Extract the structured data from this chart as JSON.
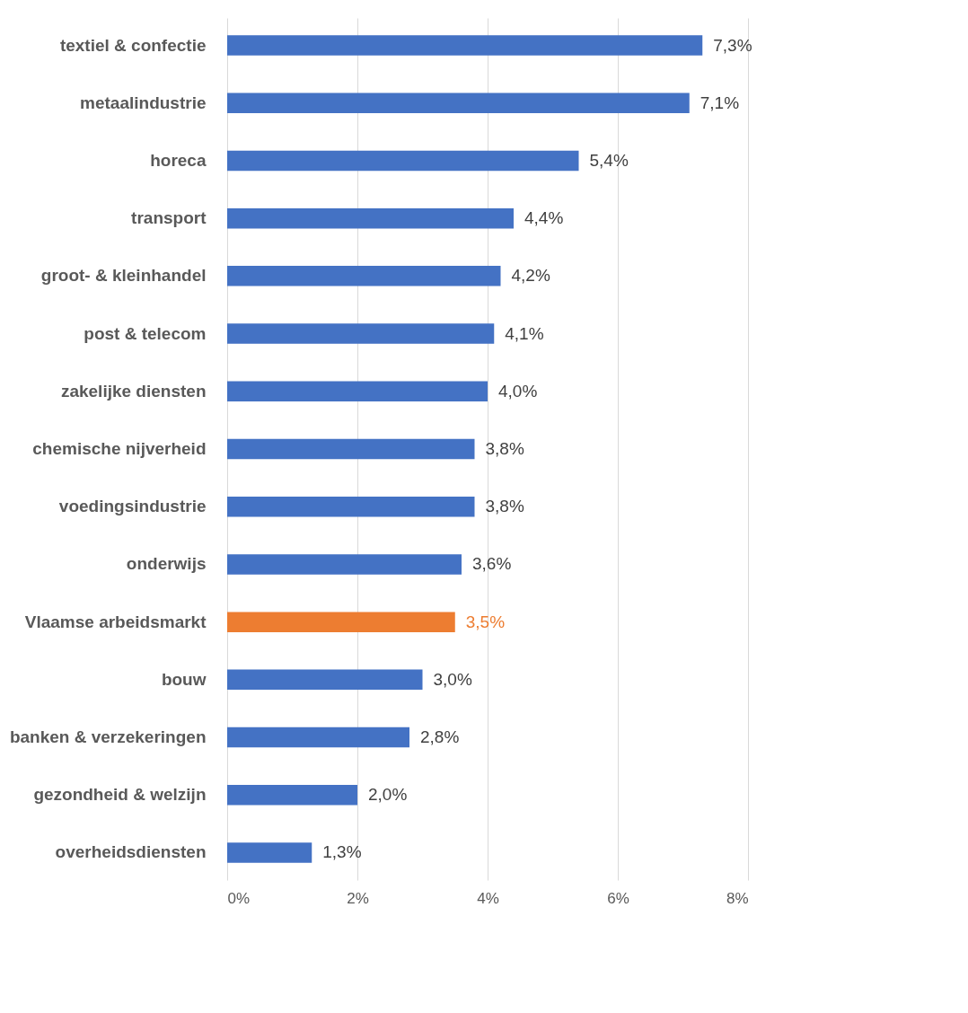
{
  "chart_data": {
    "type": "bar",
    "orientation": "horizontal",
    "categories": [
      "textiel & confectie",
      "metaalindustrie",
      "horeca ",
      "transport",
      "groot- & kleinhandel",
      "post & telecom",
      "zakelijke diensten",
      "chemische nijverheid",
      "voedingsindustrie",
      "onderwijs",
      "Vlaamse arbeidsmarkt",
      "bouw",
      "banken & verzekeringen",
      "gezondheid & welzijn",
      "overheidsdiensten"
    ],
    "values": [
      7.3,
      7.1,
      5.4,
      4.4,
      4.2,
      4.1,
      4.0,
      3.8,
      3.8,
      3.6,
      3.5,
      3.0,
      2.8,
      2.0,
      1.3
    ],
    "colors": [
      "#4472c4",
      "#4472c4",
      "#4472c4",
      "#4472c4",
      "#4472c4",
      "#4472c4",
      "#4472c4",
      "#4472c4",
      "#4472c4",
      "#4472c4",
      "#ed7d31",
      "#4472c4",
      "#4472c4",
      "#4472c4",
      "#4472c4"
    ],
    "value_labels": [
      "7,3%",
      "7,1%",
      "5,4%",
      "4,4%",
      "4,2%",
      "4,1%",
      "4,0%",
      "3,8%",
      "3,8%",
      "3,6%",
      "3,5%",
      "3,0%",
      "2,8%",
      "2,0%",
      "1,3%"
    ],
    "xlim": [
      0,
      8
    ],
    "xticks": [
      {
        "value": 0,
        "label": "0%"
      },
      {
        "value": 2,
        "label": "2%"
      },
      {
        "value": 4,
        "label": "4%"
      },
      {
        "value": 6,
        "label": "6%"
      },
      {
        "value": 8,
        "label": "8%"
      }
    ],
    "grid": "x"
  }
}
